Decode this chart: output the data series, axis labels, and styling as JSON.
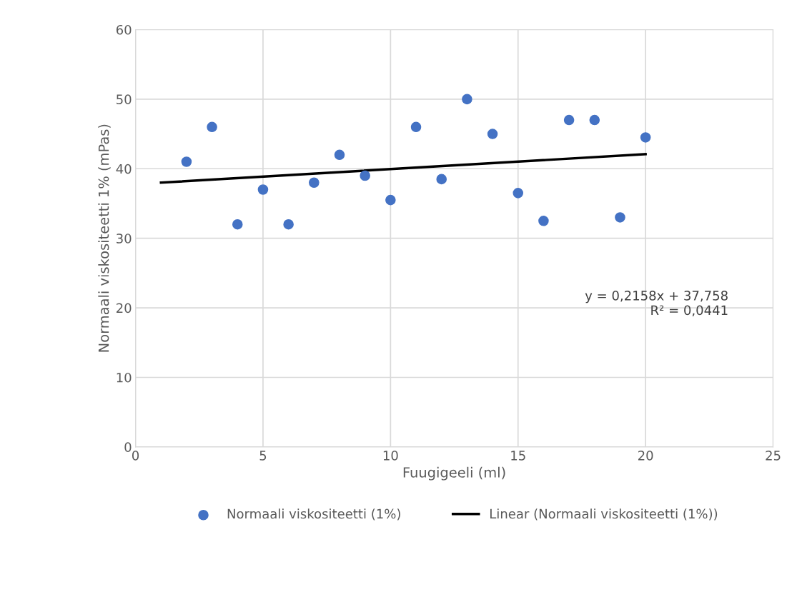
{
  "chart_data": {
    "type": "scatter",
    "xlabel": "Fuugigeeli (ml)",
    "ylabel": "Normaali viskositeetti 1% (mPas)",
    "series": [
      {
        "name": "Normaali viskositeetti (1%)",
        "type": "scatter",
        "color": "#4472c4",
        "marker": "circle",
        "x": [
          2,
          3,
          4,
          5,
          6,
          7,
          8,
          9,
          10,
          11,
          12,
          13,
          14,
          15,
          16,
          17,
          18,
          19,
          20
        ],
        "values": [
          41,
          46,
          32,
          37,
          32,
          38,
          42,
          39,
          35.5,
          46,
          38.5,
          50,
          45,
          36.5,
          32.5,
          47,
          47,
          33,
          44.5
        ]
      },
      {
        "name": "Linear (Normaali viskositeetti (1%))",
        "type": "line",
        "color": "#000000",
        "marker": "none",
        "line_style": "solid",
        "x": [
          1,
          20
        ],
        "values": [
          38.0,
          42.1
        ]
      }
    ],
    "annotations": [
      "y = 0,2158x + 37,758",
      "R² = 0,0441"
    ],
    "xlim": [
      0,
      25
    ],
    "xticks": [
      0,
      5,
      10,
      15,
      20,
      25
    ],
    "ylim": [
      0,
      60
    ],
    "yticks": [
      0,
      10,
      20,
      30,
      40,
      50,
      60
    ],
    "grid": true,
    "legend": "bottom"
  }
}
